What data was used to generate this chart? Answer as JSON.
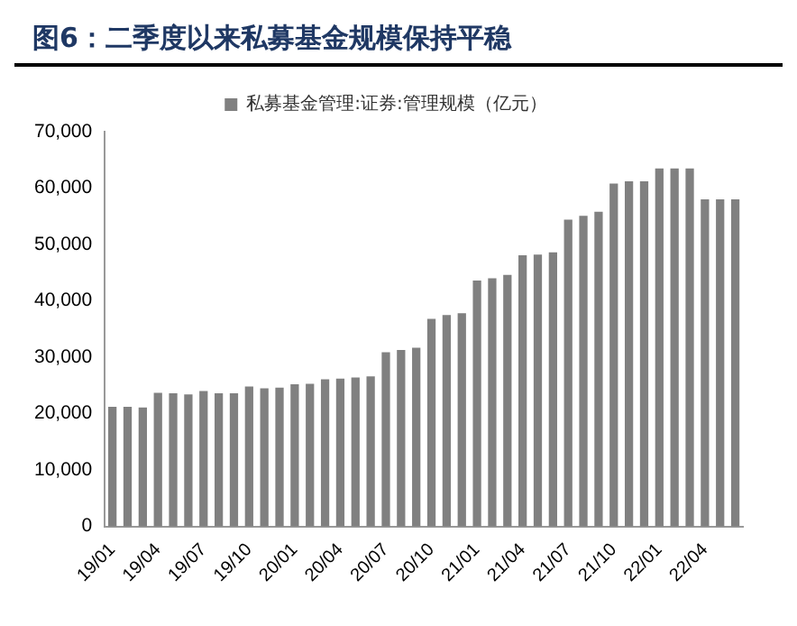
{
  "chart_data": {
    "type": "bar",
    "title": "图6：二季度以来私募基金规模保持平稳",
    "categories": [
      "19/01",
      null,
      null,
      "19/04",
      null,
      null,
      "19/07",
      null,
      null,
      "19/10",
      null,
      null,
      "20/01",
      null,
      null,
      "20/04",
      null,
      null,
      "20/07",
      null,
      null,
      "20/10",
      null,
      null,
      "21/01",
      null,
      null,
      "21/04",
      null,
      null,
      "21/07",
      null,
      null,
      "21/10",
      null,
      null,
      "22/01",
      null,
      null,
      "22/04",
      null,
      null
    ],
    "series": [
      {
        "name": "私募基金管理:证券:管理规模（亿元）",
        "color": "#808080",
        "values": [
          21200,
          21200,
          21100,
          23700,
          23600,
          23400,
          24000,
          23600,
          23600,
          24800,
          24500,
          24600,
          25200,
          25300,
          26100,
          26200,
          26400,
          26600,
          30900,
          31300,
          31700,
          36800,
          37500,
          37800,
          43600,
          44000,
          44600,
          48100,
          48200,
          48600,
          54400,
          55100,
          55800,
          60800,
          61200,
          61200,
          63500,
          63500,
          63500,
          58000,
          58000,
          58000
        ]
      }
    ],
    "ylim": [
      0,
      70000
    ],
    "yticks": [
      0,
      {
        "value": 10000,
        "label": "10,000"
      },
      {
        "value": 20000,
        "label": "20,000"
      },
      {
        "value": 30000,
        "label": "30,000"
      },
      {
        "value": 40000,
        "label": "40,000"
      },
      {
        "value": 50000,
        "label": "50,000"
      },
      {
        "value": 60000,
        "label": "60,000"
      },
      {
        "value": 70000,
        "label": "70,000"
      }
    ],
    "grid": false,
    "legend": "top"
  }
}
